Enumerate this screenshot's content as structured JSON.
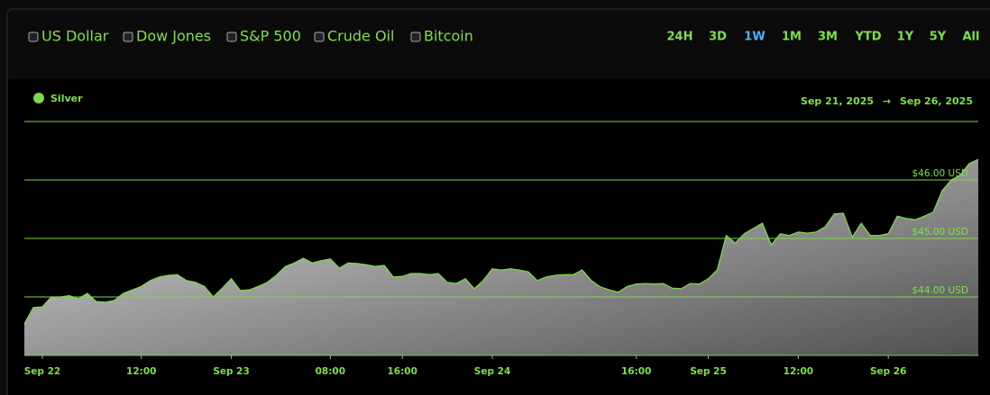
{
  "controls": {
    "series_toggles": [
      "US Dollar",
      "Dow Jones",
      "S&P 500",
      "Crude Oil",
      "Bitcoin"
    ],
    "ranges": [
      "24H",
      "3D",
      "1W",
      "1M",
      "3M",
      "YTD",
      "1Y",
      "5Y",
      "All"
    ]
  },
  "date_range": {
    "from": "Sep 21, 2025",
    "arrow": "→",
    "to": "Sep 26, 2025"
  },
  "chart_data": {
    "type": "area",
    "categories": [
      null,
      null,
      "Sep 22",
      null,
      null,
      null,
      null,
      null,
      null,
      null,
      null,
      null,
      null,
      "12:00",
      null,
      null,
      null,
      null,
      null,
      null,
      null,
      null,
      null,
      "Sep 23",
      null,
      null,
      null,
      null,
      null,
      null,
      null,
      null,
      null,
      null,
      "08:00",
      null,
      null,
      null,
      null,
      null,
      null,
      null,
      "16:00",
      null,
      null,
      null,
      null,
      null,
      null,
      null,
      null,
      null,
      "Sep 24",
      null,
      null,
      null,
      null,
      null,
      null,
      null,
      null,
      null,
      null,
      null,
      null,
      null,
      null,
      null,
      "16:00",
      null,
      null,
      null,
      null,
      null,
      null,
      null,
      "Sep 25",
      null,
      null,
      null,
      null,
      null,
      null,
      null,
      null,
      null,
      "12:00",
      null,
      null,
      null,
      null,
      null,
      null,
      null,
      null,
      null,
      "Sep 26",
      null,
      null,
      null,
      null,
      null,
      null,
      null,
      null,
      null,
      null
    ],
    "series": [
      {
        "name": "Silver",
        "color": "#7dd94a",
        "values": [
          43.54,
          43.82,
          43.83,
          44.0,
          44.0,
          44.02,
          43.97,
          44.06,
          43.92,
          43.91,
          43.94,
          44.06,
          44.12,
          44.18,
          44.28,
          44.34,
          44.37,
          44.38,
          44.28,
          44.25,
          44.18,
          44.0,
          44.15,
          44.31,
          44.11,
          44.12,
          44.18,
          44.25,
          44.37,
          44.52,
          44.58,
          44.66,
          44.58,
          44.62,
          44.65,
          44.49,
          44.58,
          44.57,
          44.55,
          44.52,
          44.54,
          44.34,
          44.35,
          44.4,
          44.4,
          44.38,
          44.4,
          44.25,
          44.23,
          44.31,
          44.14,
          44.28,
          44.48,
          44.46,
          44.48,
          44.46,
          44.43,
          44.28,
          44.34,
          44.37,
          44.38,
          44.38,
          44.46,
          44.28,
          44.17,
          44.12,
          44.08,
          44.18,
          44.22,
          44.23,
          44.22,
          44.23,
          44.15,
          44.14,
          44.23,
          44.22,
          44.31,
          44.46,
          45.05,
          44.92,
          45.08,
          45.17,
          45.26,
          44.89,
          45.08,
          45.05,
          45.11,
          45.09,
          45.11,
          45.2,
          45.42,
          45.43,
          45.02,
          45.26,
          45.05,
          45.05,
          45.08,
          45.38,
          45.34,
          45.32,
          45.38,
          45.45,
          45.82,
          46.0,
          46.08,
          46.28,
          46.35
        ]
      }
    ],
    "ylim": [
      43,
      47
    ],
    "yticks": [
      {
        "value": 44,
        "label": "$44.00 USD"
      },
      {
        "value": 45,
        "label": "$45.00 USD"
      },
      {
        "value": 46,
        "label": "$46.00 USD"
      }
    ],
    "grid": true
  }
}
